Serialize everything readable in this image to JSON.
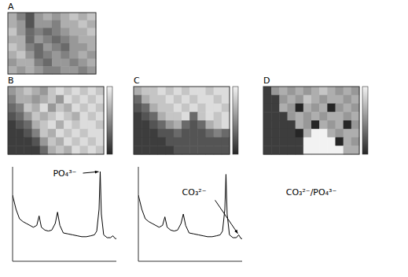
{
  "chart_data": [
    {
      "type": "image",
      "panel": "A",
      "tick_labels": false,
      "color_range": [
        0,
        9
      ],
      "cells": [
        [
          6,
          4,
          2,
          5,
          6,
          5,
          6,
          7,
          6,
          7
        ],
        [
          6,
          5,
          2,
          5,
          5,
          4,
          6,
          6,
          7,
          6
        ],
        [
          7,
          5,
          3,
          4,
          3,
          4,
          5,
          6,
          6,
          7
        ],
        [
          6,
          6,
          3,
          5,
          4,
          3,
          4,
          5,
          6,
          6
        ],
        [
          7,
          6,
          4,
          3,
          5,
          4,
          3,
          5,
          5,
          6
        ],
        [
          6,
          7,
          5,
          3,
          4,
          5,
          4,
          5,
          6,
          5
        ],
        [
          5,
          6,
          6,
          4,
          3,
          5,
          5,
          4,
          5,
          6
        ],
        [
          6,
          5,
          6,
          5,
          4,
          4,
          5,
          5,
          4,
          5
        ]
      ]
    },
    {
      "type": "heatmap",
      "panel": "B",
      "tick_labels": false,
      "color_range": [
        0,
        9
      ],
      "cells": [
        [
          5,
          6,
          7,
          6,
          5,
          7,
          8,
          7,
          8,
          7,
          8,
          7
        ],
        [
          4,
          6,
          6,
          5,
          6,
          7,
          5,
          8,
          7,
          8,
          7,
          8
        ],
        [
          3,
          4,
          7,
          6,
          8,
          5,
          7,
          6,
          8,
          7,
          8,
          7
        ],
        [
          2,
          3,
          5,
          7,
          6,
          7,
          8,
          7,
          6,
          8,
          7,
          8
        ],
        [
          1,
          2,
          3,
          6,
          7,
          8,
          6,
          8,
          7,
          8,
          8,
          7
        ],
        [
          1,
          1,
          2,
          4,
          7,
          6,
          8,
          7,
          8,
          7,
          8,
          8
        ],
        [
          1,
          1,
          1,
          2,
          5,
          7,
          6,
          8,
          7,
          8,
          7,
          8
        ],
        [
          1,
          1,
          1,
          1,
          3,
          6,
          7,
          6,
          8,
          7,
          8,
          7
        ]
      ]
    },
    {
      "type": "heatmap",
      "panel": "C",
      "tick_labels": false,
      "color_range": [
        0,
        9
      ],
      "cells": [
        [
          6,
          7,
          7,
          8,
          7,
          8,
          7,
          8,
          8,
          7,
          8,
          8
        ],
        [
          3,
          6,
          7,
          7,
          8,
          7,
          8,
          7,
          8,
          8,
          7,
          8
        ],
        [
          2,
          3,
          6,
          7,
          7,
          8,
          7,
          8,
          7,
          8,
          8,
          7
        ],
        [
          1,
          2,
          3,
          6,
          7,
          7,
          8,
          3,
          7,
          8,
          7,
          8
        ],
        [
          1,
          1,
          2,
          3,
          5,
          6,
          3,
          2,
          3,
          6,
          7,
          8
        ],
        [
          1,
          1,
          1,
          2,
          2,
          3,
          2,
          2,
          2,
          3,
          4,
          3
        ],
        [
          1,
          1,
          1,
          1,
          2,
          2,
          2,
          2,
          2,
          2,
          2,
          2
        ],
        [
          1,
          1,
          1,
          1,
          1,
          2,
          2,
          2,
          2,
          2,
          2,
          2
        ]
      ]
    },
    {
      "type": "heatmap",
      "panel": "D",
      "caption": "CO₃²⁻/PO₄³⁻",
      "tick_labels": false,
      "color_range": [
        0,
        9
      ],
      "cells": [
        [
          1,
          5,
          6,
          5,
          6,
          5,
          6,
          7,
          6,
          5,
          6,
          5
        ],
        [
          1,
          1,
          5,
          6,
          5,
          7,
          6,
          5,
          6,
          6,
          5,
          6
        ],
        [
          1,
          1,
          6,
          5,
          0,
          6,
          5,
          6,
          0,
          5,
          6,
          5
        ],
        [
          1,
          1,
          1,
          5,
          6,
          5,
          6,
          5,
          6,
          6,
          5,
          6
        ],
        [
          1,
          1,
          1,
          1,
          6,
          5,
          0,
          6,
          5,
          6,
          0,
          5
        ],
        [
          1,
          1,
          1,
          1,
          0,
          6,
          9,
          9,
          6,
          5,
          6,
          6
        ],
        [
          1,
          1,
          1,
          1,
          1,
          9,
          9,
          9,
          9,
          0,
          6,
          5
        ],
        [
          1,
          1,
          1,
          1,
          1,
          9,
          9,
          9,
          9,
          9,
          6,
          6
        ]
      ]
    },
    {
      "type": "line",
      "color": "#000000",
      "tick_labels": false,
      "xlim": [
        200,
        1100
      ],
      "ylim": [
        0,
        100
      ],
      "x": [
        200,
        230,
        260,
        290,
        320,
        350,
        380,
        410,
        430,
        450,
        480,
        510,
        540,
        570,
        590,
        610,
        640,
        680,
        720,
        760,
        800,
        840,
        880,
        910,
        930,
        950,
        960,
        970,
        990,
        1020,
        1050,
        1070,
        1090,
        1100
      ],
      "values": [
        70,
        55,
        45,
        42,
        40,
        38,
        36,
        38,
        48,
        36,
        33,
        32,
        33,
        40,
        52,
        38,
        30,
        29,
        28,
        27,
        26,
        26,
        27,
        28,
        32,
        55,
        95,
        50,
        28,
        25,
        25,
        27,
        24,
        24
      ],
      "annotations": [
        {
          "text": "PO₄³⁻",
          "x": 960,
          "y": 95
        }
      ]
    },
    {
      "type": "line",
      "color": "#000000",
      "tick_labels": false,
      "xlim": [
        200,
        1100
      ],
      "ylim": [
        0,
        100
      ],
      "x": [
        200,
        230,
        260,
        290,
        320,
        350,
        380,
        410,
        430,
        450,
        480,
        510,
        540,
        570,
        590,
        610,
        640,
        680,
        720,
        760,
        800,
        840,
        880,
        910,
        930,
        950,
        960,
        970,
        990,
        1020,
        1050,
        1070,
        1090,
        1100
      ],
      "values": [
        70,
        55,
        45,
        42,
        40,
        38,
        36,
        38,
        47,
        36,
        33,
        32,
        33,
        40,
        50,
        38,
        30,
        29,
        28,
        27,
        26,
        26,
        27,
        28,
        32,
        55,
        92,
        50,
        28,
        25,
        25,
        28,
        24,
        24
      ],
      "annotations": [
        {
          "text": "CO₃²⁻",
          "x": 1070,
          "y": 28
        }
      ]
    }
  ]
}
